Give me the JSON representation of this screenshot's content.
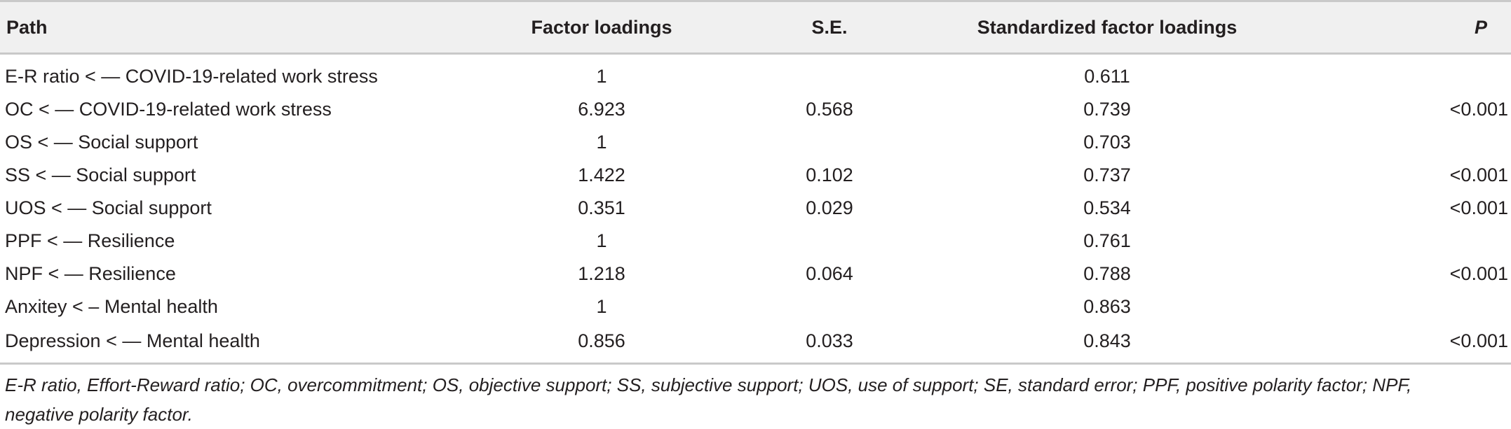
{
  "table": {
    "headers": {
      "path": "Path",
      "factor_loadings": "Factor loadings",
      "se": "S.E.",
      "standardized": "Standardized factor loadings",
      "p": "P"
    },
    "rows": [
      {
        "path": "E-R ratio < — COVID-19-related work stress",
        "factor_loadings": "1",
        "se": "",
        "standardized": "0.611",
        "p": ""
      },
      {
        "path": "OC < — COVID-19-related work stress",
        "factor_loadings": "6.923",
        "se": "0.568",
        "standardized": "0.739",
        "p": "<0.001"
      },
      {
        "path": "OS < — Social support",
        "factor_loadings": "1",
        "se": "",
        "standardized": "0.703",
        "p": ""
      },
      {
        "path": "SS < — Social support",
        "factor_loadings": "1.422",
        "se": "0.102",
        "standardized": "0.737",
        "p": "<0.001"
      },
      {
        "path": "UOS < — Social support",
        "factor_loadings": "0.351",
        "se": "0.029",
        "standardized": "0.534",
        "p": "<0.001"
      },
      {
        "path": "PPF < — Resilience",
        "factor_loadings": "1",
        "se": "",
        "standardized": "0.761",
        "p": ""
      },
      {
        "path": "NPF < — Resilience",
        "factor_loadings": "1.218",
        "se": "0.064",
        "standardized": "0.788",
        "p": "<0.001"
      },
      {
        "path": "Anxitey < – Mental health",
        "factor_loadings": "1",
        "se": "",
        "standardized": "0.863",
        "p": ""
      },
      {
        "path": "Depression < — Mental health",
        "factor_loadings": "0.856",
        "se": "0.033",
        "standardized": "0.843",
        "p": "<0.001"
      }
    ]
  },
  "footnote": "E-R ratio, Effort-Reward ratio; OC, overcommitment; OS, objective support; SS, subjective support; UOS, use of support; SE, standard error; PPF, positive polarity factor; NPF, negative polarity factor."
}
